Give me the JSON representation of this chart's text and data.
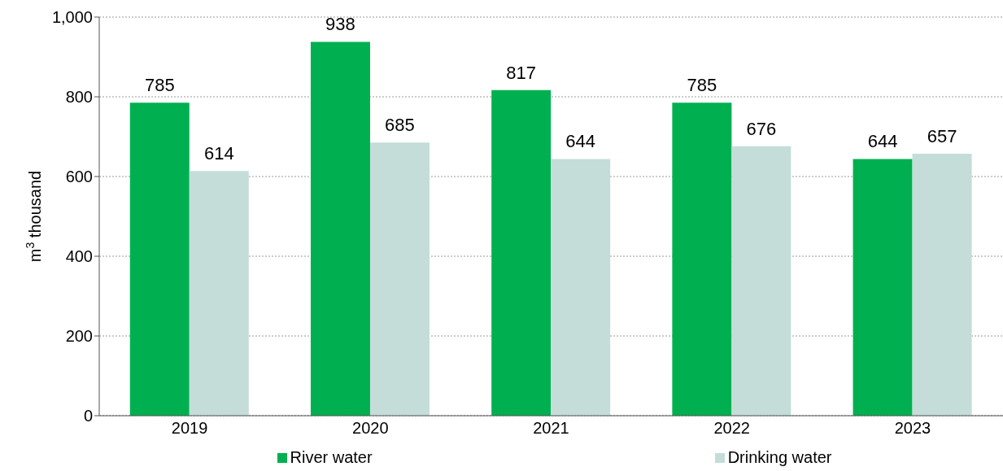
{
  "chart_data": {
    "type": "bar",
    "ylabel": "m$^{3}$ thousand",
    "categories": [
      "2019",
      "2020",
      "2021",
      "2022",
      "2023"
    ],
    "series": [
      {
        "name": "River water",
        "color": "#00b050",
        "values": [
          785,
          938,
          817,
          785,
          644
        ]
      },
      {
        "name": "Drinking water",
        "color": "#c4ddd8",
        "values": [
          614,
          685,
          644,
          676,
          657
        ]
      }
    ],
    "ylim": [
      0,
      1000
    ],
    "yticks": [
      0,
      200,
      400,
      600,
      800,
      {
        "value": 1000,
        "label": "1,000"
      }
    ],
    "grid": "y",
    "legend": "bottom",
    "data_labels": true
  }
}
